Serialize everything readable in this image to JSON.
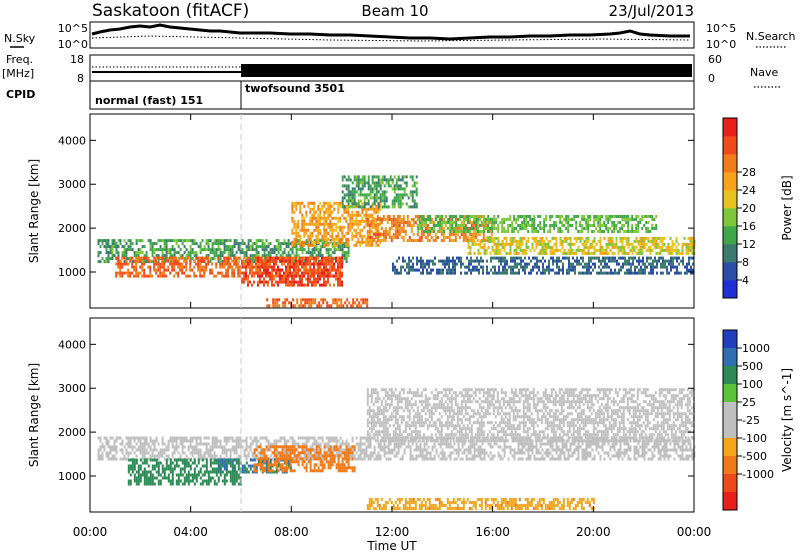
{
  "header": {
    "station": "Saskatoon (fitACF)",
    "beam": "Beam 10",
    "date": "23/Jul/2013"
  },
  "sky_panel": {
    "left_label": "N.Sky",
    "left_ticks": [
      "10^5",
      "10^0"
    ],
    "right_ticks": [
      "10^5",
      "10^0"
    ],
    "right_label": "N.Search"
  },
  "freq_panel": {
    "left_label_1": "Freq.",
    "left_label_2": "[MHz]",
    "left_ticks": [
      "18",
      "8"
    ],
    "right_ticks": [
      "60",
      "0"
    ],
    "right_label": "Nave"
  },
  "cpid": {
    "label": "CPID",
    "segments": [
      "normal (fast) 151",
      "twofsound 3501"
    ],
    "switch_time_hours": 6
  },
  "power_colorbar": {
    "label": "Power [dB]",
    "ticks": [
      "4",
      "8",
      "12",
      "16",
      "20",
      "24",
      "28"
    ],
    "colors": [
      "#1f2fd6",
      "#2a4ea8",
      "#3c7a70",
      "#3fa64a",
      "#7cc83a",
      "#e8c21e",
      "#f7a21a",
      "#f27b1a",
      "#ef4b1c",
      "#e8201c"
    ]
  },
  "velocity_colorbar": {
    "label": "Velocity [m s^-1]",
    "ticks": [
      "1000",
      "500",
      "100",
      "25",
      "-25",
      "-100",
      "-500",
      "-1000"
    ],
    "colors": [
      "#1f3fbf",
      "#2f6fb0",
      "#2e8a55",
      "#5cc23a",
      "#c0c0c0",
      "#c0c0c0",
      "#f5a51a",
      "#f07a1a",
      "#ec4a1c",
      "#e8201c"
    ]
  },
  "chart_data": [
    {
      "type": "heatmap",
      "title": "",
      "xlabel": "Time UT",
      "ylabel": "Slant Range [km]",
      "xlim": [
        0,
        24
      ],
      "ylim": [
        180,
        4600
      ],
      "x_tick_labels": [
        "00:00",
        "04:00",
        "08:00",
        "12:00",
        "16:00",
        "20:00",
        "00:00"
      ],
      "y_tick_labels": [
        "1000",
        "2000",
        "3000",
        "4000"
      ],
      "colorbar_label": "Power [dB]",
      "bands": [
        {
          "x": [
            0.3,
            10.3
          ],
          "y": [
            1250,
            1750
          ],
          "value": 12
        },
        {
          "x": [
            1.0,
            10.0
          ],
          "y": [
            900,
            1350
          ],
          "value": 26
        },
        {
          "x": [
            6.0,
            10.0
          ],
          "y": [
            700,
            1350
          ],
          "value": 28
        },
        {
          "x": [
            8.0,
            11.5
          ],
          "y": [
            1600,
            2600
          ],
          "value": 22
        },
        {
          "x": [
            10.0,
            13.0
          ],
          "y": [
            2500,
            3200
          ],
          "value": 12
        },
        {
          "x": [
            11.0,
            16.0
          ],
          "y": [
            1700,
            2300
          ],
          "value": 24
        },
        {
          "x": [
            13.0,
            22.5
          ],
          "y": [
            1900,
            2300
          ],
          "value": 14
        },
        {
          "x": [
            15.0,
            24.0
          ],
          "y": [
            1400,
            1800
          ],
          "value": 18
        },
        {
          "x": [
            12.0,
            24.0
          ],
          "y": [
            950,
            1350
          ],
          "value": 8
        },
        {
          "x": [
            7.0,
            11.0
          ],
          "y": [
            200,
            400
          ],
          "value": 26
        }
      ]
    },
    {
      "type": "heatmap",
      "title": "",
      "xlabel": "Time UT",
      "ylabel": "Slant Range [km]",
      "xlim": [
        0,
        24
      ],
      "ylim": [
        180,
        4600
      ],
      "x_tick_labels": [
        "00:00",
        "04:00",
        "08:00",
        "12:00",
        "16:00",
        "20:00",
        "00:00"
      ],
      "y_tick_labels": [
        "1000",
        "2000",
        "3000",
        "4000"
      ],
      "colorbar_label": "Velocity [m s^-1]",
      "bands": [
        {
          "x": [
            0.3,
            24.0
          ],
          "y": [
            1400,
            1900
          ],
          "value": 0
        },
        {
          "x": [
            11.0,
            24.0
          ],
          "y": [
            1800,
            3000
          ],
          "value": 0
        },
        {
          "x": [
            1.5,
            6.0
          ],
          "y": [
            800,
            1400
          ],
          "value": 150
        },
        {
          "x": [
            5.0,
            8.0
          ],
          "y": [
            1100,
            1400
          ],
          "value": 500
        },
        {
          "x": [
            6.5,
            10.5
          ],
          "y": [
            1100,
            1700
          ],
          "value": -300
        },
        {
          "x": [
            11.0,
            20.0
          ],
          "y": [
            250,
            500
          ],
          "value": -80
        }
      ]
    }
  ]
}
